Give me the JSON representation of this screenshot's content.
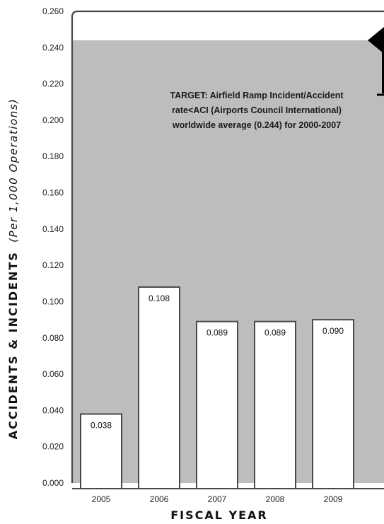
{
  "chart_data": {
    "type": "bar",
    "categories": [
      "2005",
      "2006",
      "2007",
      "2008",
      "2009"
    ],
    "values": [
      0.038,
      0.108,
      0.089,
      0.089,
      0.09
    ],
    "value_labels": [
      "0.038",
      "0.108",
      "0.089",
      "0.089",
      "0.090"
    ],
    "xlabel": "FISCAL YEAR",
    "ylabel": "ACCIDENTS & INCIDENTS",
    "ylabel_unit": "(Per 1,000 Operations)",
    "ylim": [
      0,
      0.26
    ],
    "yticks": [
      "0.000",
      "0.020",
      "0.040",
      "0.060",
      "0.080",
      "0.100",
      "0.120",
      "0.140",
      "0.160",
      "0.180",
      "0.200",
      "0.220",
      "0.240",
      "0.260"
    ],
    "target_value": 0.244,
    "target_label_lines": [
      "TARGET: Airfield Ramp Incident/Accident",
      "rate<ACI (Airports Council International)",
      "worldwide average (0.244) for 2000-2007"
    ],
    "grid": false,
    "legend": "none"
  },
  "colors": {
    "target_region": "#bdbdbd",
    "bar_fill": "#ffffff",
    "bar_stroke": "#4a4a4a",
    "axis": "#4a4a4a",
    "marker": "#000000"
  }
}
